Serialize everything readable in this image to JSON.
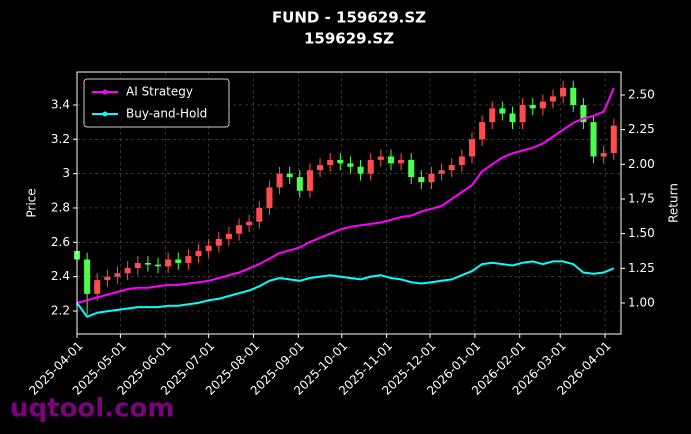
{
  "chart_data": {
    "type": "candlestick",
    "title": "FUND - 159629.SZ",
    "subtitle": "159629.SZ",
    "watermark": "uqtool.com",
    "ylabel": "Price",
    "y2label": "Return",
    "x": [
      "2025-04-01",
      "2025-04-08",
      "2025-04-15",
      "2025-04-22",
      "2025-04-29",
      "2025-05-06",
      "2025-05-13",
      "2025-05-20",
      "2025-05-27",
      "2025-06-03",
      "2025-06-10",
      "2025-06-17",
      "2025-06-24",
      "2025-07-01",
      "2025-07-08",
      "2025-07-15",
      "2025-07-22",
      "2025-07-29",
      "2025-08-05",
      "2025-08-12",
      "2025-08-19",
      "2025-08-26",
      "2025-09-02",
      "2025-09-09",
      "2025-09-16",
      "2025-09-23",
      "2025-09-30",
      "2025-10-07",
      "2025-10-14",
      "2025-10-21",
      "2025-10-28",
      "2025-11-04",
      "2025-11-11",
      "2025-11-18",
      "2025-11-25",
      "2025-12-02",
      "2025-12-09",
      "2025-12-16",
      "2025-12-23",
      "2025-12-30",
      "2026-01-06",
      "2026-01-13",
      "2026-01-20",
      "2026-01-27",
      "2026-02-03",
      "2026-02-10",
      "2026-02-17",
      "2026-02-24",
      "2026-03-03",
      "2026-03-10",
      "2026-03-17",
      "2026-03-24",
      "2026-03-31",
      "2026-04-07"
    ],
    "open": [
      2.55,
      2.5,
      2.3,
      2.38,
      2.4,
      2.42,
      2.45,
      2.48,
      2.47,
      2.46,
      2.5,
      2.48,
      2.52,
      2.55,
      2.58,
      2.62,
      2.65,
      2.7,
      2.72,
      2.8,
      2.92,
      3.0,
      2.98,
      2.9,
      3.02,
      3.05,
      3.08,
      3.06,
      3.04,
      3.0,
      3.08,
      3.1,
      3.06,
      3.08,
      2.98,
      2.95,
      3.0,
      3.02,
      3.05,
      3.1,
      3.2,
      3.3,
      3.38,
      3.35,
      3.3,
      3.4,
      3.38,
      3.42,
      3.45,
      3.5,
      3.4,
      3.3,
      3.1,
      3.12
    ],
    "high": [
      2.59,
      2.54,
      2.42,
      2.44,
      2.46,
      2.49,
      2.52,
      2.52,
      2.51,
      2.54,
      2.54,
      2.56,
      2.59,
      2.62,
      2.66,
      2.69,
      2.74,
      2.76,
      2.84,
      2.96,
      3.04,
      3.04,
      3.02,
      3.06,
      3.09,
      3.12,
      3.12,
      3.1,
      3.08,
      3.12,
      3.14,
      3.14,
      3.12,
      3.12,
      3.02,
      3.04,
      3.06,
      3.09,
      3.14,
      3.24,
      3.34,
      3.42,
      3.42,
      3.39,
      3.44,
      3.44,
      3.46,
      3.49,
      3.54,
      3.54,
      3.44,
      3.34,
      3.16,
      3.32
    ],
    "low": [
      2.46,
      2.18,
      2.26,
      2.34,
      2.36,
      2.38,
      2.41,
      2.43,
      2.42,
      2.42,
      2.44,
      2.44,
      2.48,
      2.51,
      2.54,
      2.58,
      2.61,
      2.66,
      2.68,
      2.76,
      2.88,
      2.94,
      2.86,
      2.86,
      2.98,
      3.01,
      3.02,
      3.0,
      2.96,
      2.96,
      3.04,
      3.02,
      3.02,
      2.94,
      2.91,
      2.91,
      2.96,
      2.98,
      3.01,
      3.06,
      3.16,
      3.26,
      3.31,
      3.26,
      3.26,
      3.34,
      3.34,
      3.38,
      3.41,
      3.36,
      3.26,
      3.06,
      3.06,
      3.08
    ],
    "close": [
      2.5,
      2.3,
      2.38,
      2.4,
      2.42,
      2.45,
      2.48,
      2.47,
      2.46,
      2.5,
      2.48,
      2.52,
      2.55,
      2.58,
      2.62,
      2.65,
      2.7,
      2.72,
      2.8,
      2.92,
      3.0,
      2.98,
      2.9,
      3.02,
      3.05,
      3.08,
      3.06,
      3.04,
      3.0,
      3.08,
      3.1,
      3.06,
      3.08,
      2.98,
      2.95,
      3.0,
      3.02,
      3.05,
      3.1,
      3.2,
      3.3,
      3.38,
      3.35,
      3.3,
      3.4,
      3.38,
      3.42,
      3.45,
      3.5,
      3.4,
      3.3,
      3.1,
      3.12,
      3.28
    ],
    "up_color": "#ff4d4d",
    "down_color": "#4dff4d",
    "series": [
      {
        "name": "AI Strategy",
        "color": "#ff00ff",
        "axis": "y2",
        "values": [
          1.0,
          1.02,
          1.04,
          1.06,
          1.08,
          1.1,
          1.11,
          1.11,
          1.12,
          1.13,
          1.13,
          1.14,
          1.15,
          1.16,
          1.18,
          1.2,
          1.22,
          1.25,
          1.28,
          1.32,
          1.36,
          1.38,
          1.4,
          1.44,
          1.47,
          1.5,
          1.53,
          1.55,
          1.56,
          1.57,
          1.58,
          1.6,
          1.62,
          1.63,
          1.66,
          1.68,
          1.7,
          1.75,
          1.8,
          1.85,
          1.95,
          2.0,
          2.05,
          2.08,
          2.1,
          2.12,
          2.15,
          2.2,
          2.25,
          2.3,
          2.33,
          2.35,
          2.38,
          2.55
        ]
      },
      {
        "name": "Buy-and-Hold",
        "color": "#00ffff",
        "axis": "y2",
        "values": [
          1.0,
          0.9,
          0.93,
          0.94,
          0.95,
          0.96,
          0.97,
          0.97,
          0.97,
          0.98,
          0.98,
          0.99,
          1.0,
          1.02,
          1.03,
          1.05,
          1.07,
          1.09,
          1.12,
          1.16,
          1.18,
          1.17,
          1.16,
          1.18,
          1.19,
          1.2,
          1.19,
          1.18,
          1.17,
          1.19,
          1.2,
          1.18,
          1.17,
          1.15,
          1.14,
          1.15,
          1.16,
          1.17,
          1.2,
          1.23,
          1.28,
          1.29,
          1.28,
          1.27,
          1.29,
          1.3,
          1.28,
          1.3,
          1.3,
          1.28,
          1.22,
          1.21,
          1.22,
          1.25
        ]
      }
    ],
    "xlim": [
      "2025-04-01",
      "2026-04-12"
    ],
    "xticks": [
      "2025-04-01",
      "2025-05-01",
      "2025-06-01",
      "2025-07-01",
      "2025-08-01",
      "2025-09-01",
      "2025-10-01",
      "2025-11-01",
      "2025-12-01",
      "2026-01-01",
      "2026-02-01",
      "2026-03-01",
      "2026-04-01"
    ],
    "ylim": [
      2.066,
      3.592
    ],
    "yticks": [
      2.2,
      2.4,
      2.6,
      2.8,
      3,
      3.2,
      3.4
    ],
    "y2lim": [
      0.776,
      2.666
    ],
    "y2ticks": [
      {
        "value": 1,
        "label": "1.00"
      },
      1.25,
      {
        "value": 1.5,
        "label": "1.50"
      },
      1.75,
      {
        "value": 2,
        "label": "2.00"
      },
      2.25,
      {
        "value": 2.5,
        "label": "2.50"
      }
    ],
    "yticks_labels_note_free": true,
    "grid": true,
    "legend": "upper left"
  }
}
